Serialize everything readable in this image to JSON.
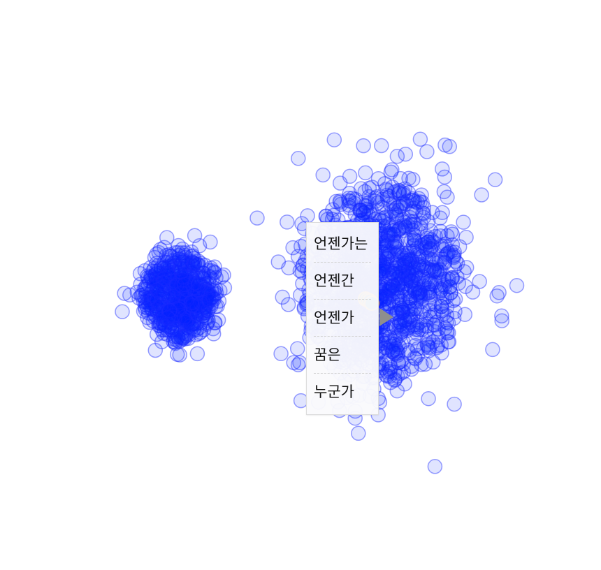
{
  "chart_data": {
    "type": "scatter",
    "title": "",
    "xlabel": "",
    "ylabel": "",
    "grid": false,
    "legend": "none",
    "background_color": "#ffffff",
    "series": [
      {
        "role": "word-embedding-points",
        "fill": "#0022ff",
        "fill_opacity": 0.12,
        "stroke": "#1a2bff",
        "stroke_opacity": 0.45,
        "approx_point_count": 1800,
        "clusters": [
          {
            "name_hint": "left-cluster",
            "cx": -0.58,
            "cy": 0.05,
            "spread_x": 0.12,
            "spread_y": 0.15
          },
          {
            "name_hint": "right-cluster",
            "cx": 0.38,
            "cy": 0.12,
            "spread_x": 0.26,
            "spread_y": 0.32
          }
        ]
      },
      {
        "role": "highlighted-points",
        "fill": "#2d7fa8",
        "stroke": "#f0a030",
        "points": [
          {
            "x": 0.31,
            "y": 0.04
          },
          {
            "x": 0.32,
            "y": 0.035
          },
          {
            "x": 0.33,
            "y": 0.03
          },
          {
            "x": 0.34,
            "y": 0.02
          }
        ]
      }
    ]
  },
  "tooltip": {
    "items": [
      "언젠가는",
      "언젠간",
      "언젠가",
      "꿈은",
      "누군가"
    ],
    "arrow_color": "#8e8e8e"
  }
}
